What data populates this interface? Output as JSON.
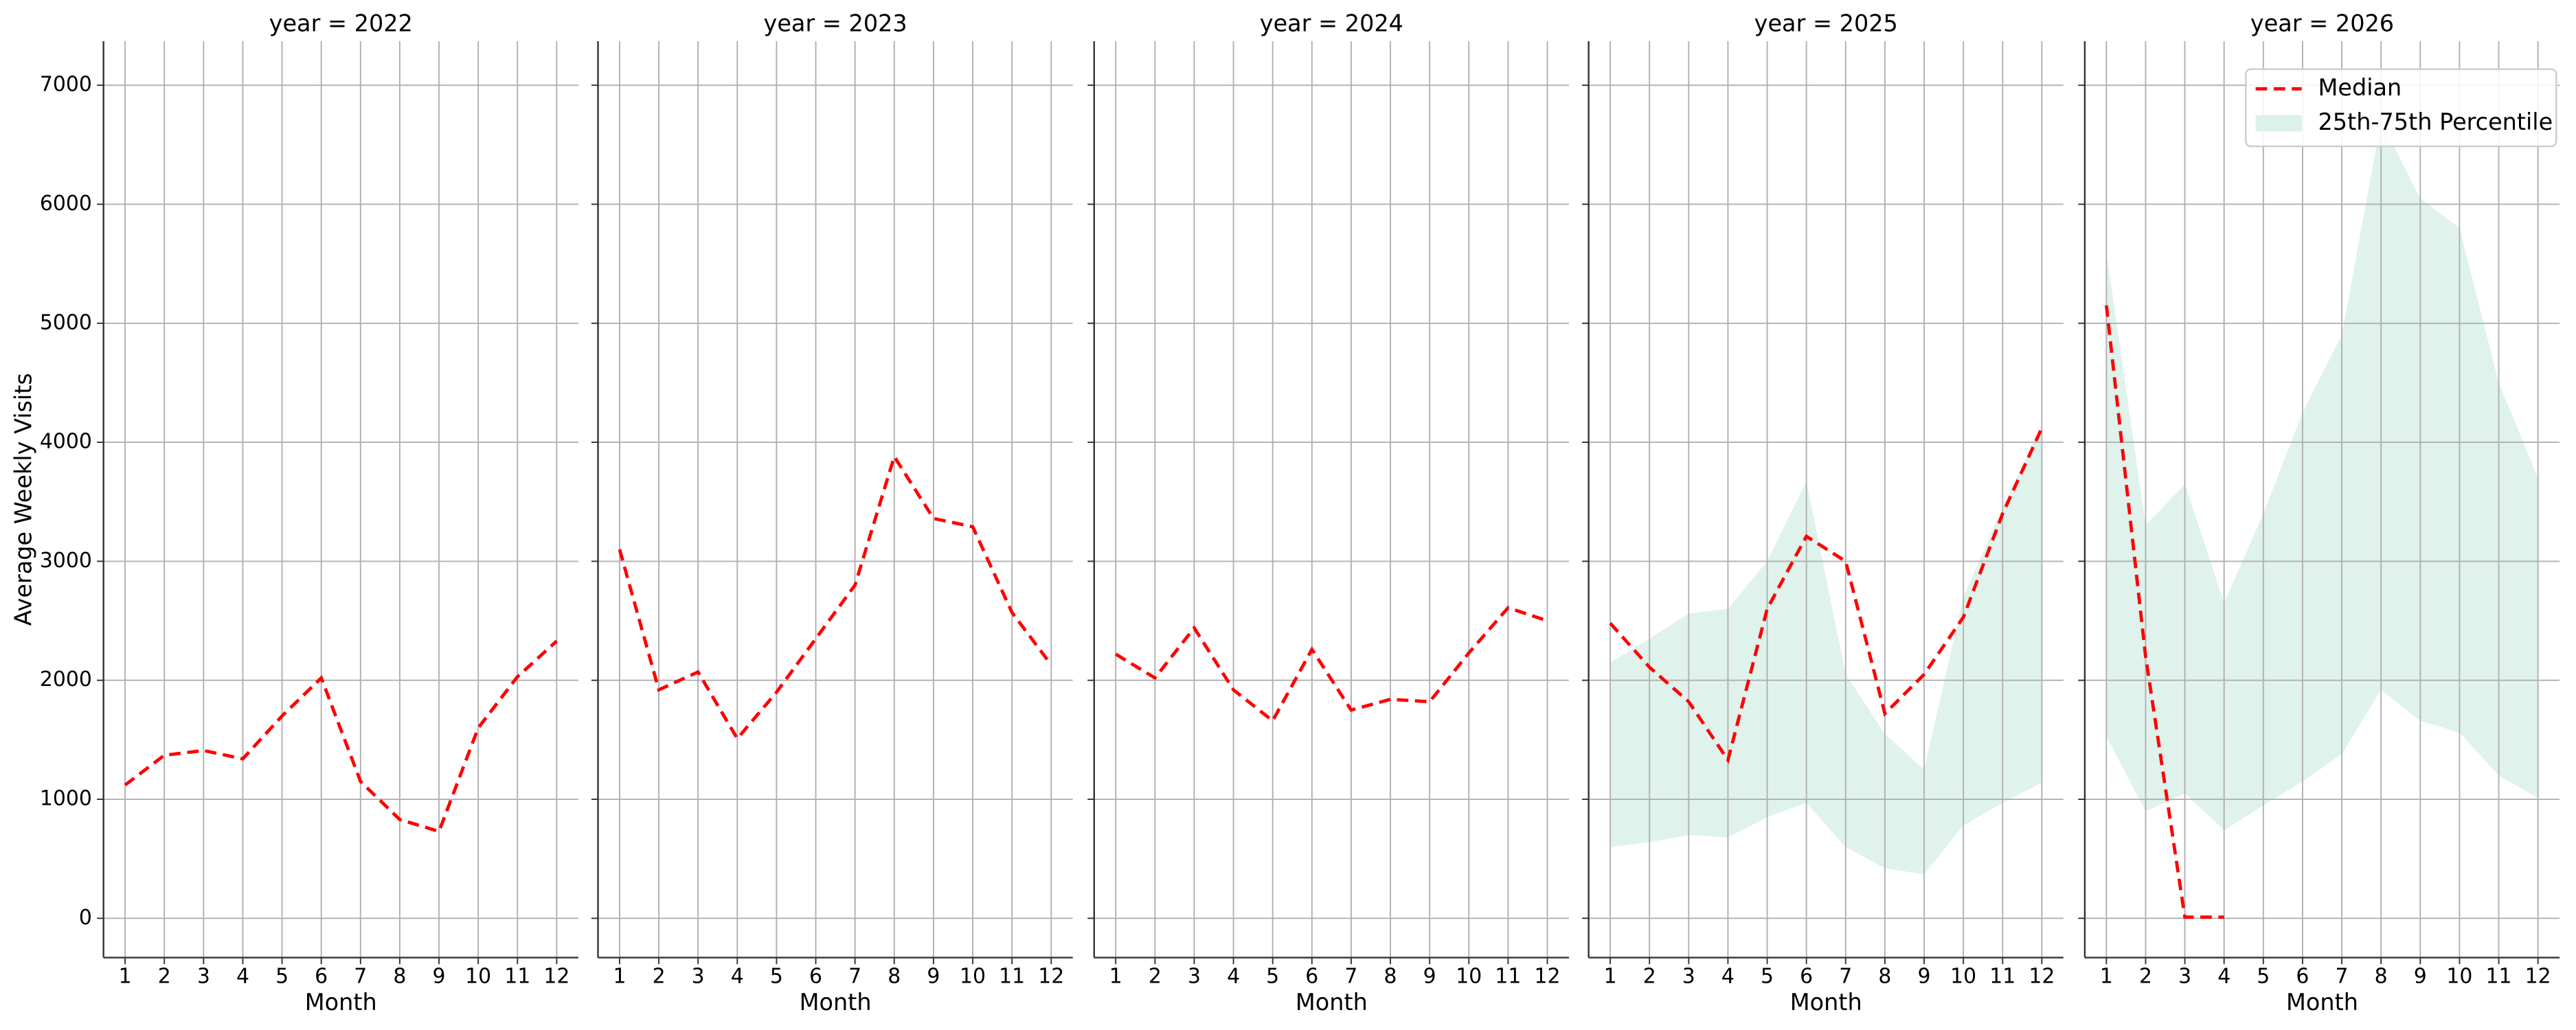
{
  "chart_data": [
    {
      "type": "line",
      "title": "year = 2022",
      "xlabel": "Month",
      "ylabel": "Average Weekly Visits",
      "x": [
        1,
        2,
        3,
        4,
        5,
        6,
        7,
        8,
        9,
        10,
        11,
        12
      ],
      "xticks": [
        1,
        2,
        3,
        4,
        5,
        6,
        7,
        8,
        9,
        10,
        11,
        12
      ],
      "xlim": [
        0.45,
        12.55
      ],
      "ylim": [
        -330,
        7370
      ],
      "yticks": [
        0,
        1000,
        2000,
        3000,
        4000,
        5000,
        6000,
        7000
      ],
      "grid": true,
      "series": [
        {
          "color": "#ff0000",
          "values": [
            1120,
            1370,
            1410,
            1340,
            1700,
            2020,
            1150,
            830,
            730,
            1600,
            2030,
            2330
          ]
        }
      ]
    },
    {
      "type": "line",
      "title": "year = 2023",
      "xlabel": "Month",
      "x": [
        1,
        2,
        3,
        4,
        5,
        6,
        7,
        8,
        9,
        10,
        11,
        12
      ],
      "xticks": [
        1,
        2,
        3,
        4,
        5,
        6,
        7,
        8,
        9,
        10,
        11,
        12
      ],
      "xlim": [
        0.45,
        12.55
      ],
      "ylim": [
        -330,
        7370
      ],
      "yticks": [
        0,
        1000,
        2000,
        3000,
        4000,
        5000,
        6000,
        7000
      ],
      "grid": true,
      "series": [
        {
          "color": "#ff0000",
          "values": [
            3100,
            1920,
            2070,
            1510,
            1900,
            2350,
            2800,
            3880,
            3360,
            3290,
            2570,
            2130
          ]
        }
      ]
    },
    {
      "type": "line",
      "title": "year = 2024",
      "xlabel": "Month",
      "x": [
        1,
        2,
        3,
        4,
        5,
        6,
        7,
        8,
        9,
        10,
        11,
        12
      ],
      "xticks": [
        1,
        2,
        3,
        4,
        5,
        6,
        7,
        8,
        9,
        10,
        11,
        12
      ],
      "xlim": [
        0.45,
        12.55
      ],
      "ylim": [
        -330,
        7370
      ],
      "yticks": [
        0,
        1000,
        2000,
        3000,
        4000,
        5000,
        6000,
        7000
      ],
      "grid": true,
      "series": [
        {
          "color": "#ff0000",
          "values": [
            2220,
            2020,
            2440,
            1920,
            1660,
            2260,
            1750,
            1840,
            1820,
            2230,
            2610,
            2500
          ]
        }
      ]
    },
    {
      "type": "line",
      "title": "year = 2025",
      "xlabel": "Month",
      "x": [
        1,
        2,
        3,
        4,
        5,
        6,
        7,
        8,
        9,
        10,
        11,
        12
      ],
      "xticks": [
        1,
        2,
        3,
        4,
        5,
        6,
        7,
        8,
        9,
        10,
        11,
        12
      ],
      "xlim": [
        0.45,
        12.55
      ],
      "ylim": [
        -330,
        7370
      ],
      "yticks": [
        0,
        1000,
        2000,
        3000,
        4000,
        5000,
        6000,
        7000
      ],
      "grid": true,
      "series": [
        {
          "color": "#ff0000",
          "values": [
            2480,
            2110,
            1820,
            1330,
            2600,
            3210,
            3000,
            1720,
            2050,
            2530,
            3400,
            4120
          ]
        },
        {
          "type": "band",
          "color": "#dcf1ea",
          "low": [
            600,
            640,
            700,
            680,
            850,
            970,
            600,
            420,
            370,
            780,
            970,
            1140
          ],
          "high": [
            2150,
            2350,
            2560,
            2600,
            3000,
            3670,
            2050,
            1550,
            1250,
            2700,
            3450,
            4150
          ]
        }
      ]
    },
    {
      "type": "line",
      "title": "year = 2026",
      "xlabel": "Month",
      "legend": "upper right",
      "x": [
        1,
        2,
        3,
        4,
        5,
        6,
        7,
        8,
        9,
        10,
        11,
        12
      ],
      "xticks": [
        1,
        2,
        3,
        4,
        5,
        6,
        7,
        8,
        9,
        10,
        11,
        12
      ],
      "xlim": [
        0.45,
        12.55
      ],
      "ylim": [
        -330,
        7370
      ],
      "yticks": [
        0,
        1000,
        2000,
        3000,
        4000,
        5000,
        6000,
        7000
      ],
      "grid": true,
      "series": [
        {
          "name": "Median",
          "color": "#ff0000",
          "values": [
            5150,
            2200,
            10,
            10,
            null,
            null,
            null,
            null,
            null,
            null,
            null,
            null
          ]
        },
        {
          "name": "25th-75th Percentile",
          "type": "band",
          "color": "#dcf1ea",
          "low": [
            1530,
            900,
            1050,
            740,
            950,
            1150,
            1380,
            1920,
            1660,
            1560,
            1200,
            1010
          ],
          "high": [
            5600,
            3300,
            3650,
            2650,
            3400,
            4250,
            4900,
            6700,
            6050,
            5800,
            4500,
            3700
          ]
        }
      ]
    }
  ]
}
